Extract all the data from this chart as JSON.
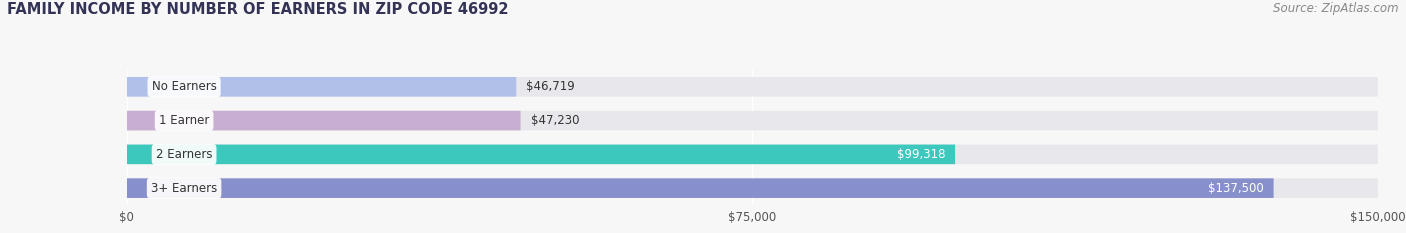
{
  "title": "FAMILY INCOME BY NUMBER OF EARNERS IN ZIP CODE 46992",
  "source": "Source: ZipAtlas.com",
  "categories": [
    "No Earners",
    "1 Earner",
    "2 Earners",
    "3+ Earners"
  ],
  "values": [
    46719,
    47230,
    99318,
    137500
  ],
  "bar_colors": [
    "#b0c0e8",
    "#c8aed0",
    "#3cc8bc",
    "#8890cc"
  ],
  "value_label_colors": [
    "#555555",
    "#555555",
    "#ffffff",
    "#ffffff"
  ],
  "value_labels": [
    "$46,719",
    "$47,230",
    "$99,318",
    "$137,500"
  ],
  "xlim_max": 150000,
  "xticks": [
    0,
    75000,
    150000
  ],
  "xticklabels": [
    "$0",
    "$75,000",
    "$150,000"
  ],
  "fig_bg_color": "#f7f7f7",
  "bar_bg_color": "#e8e8ec",
  "title_color": "#333355",
  "source_color": "#888888",
  "label_text_color": "#333333",
  "title_fontsize": 10.5,
  "source_fontsize": 8.5,
  "cat_fontsize": 8.5,
  "value_fontsize": 8.5,
  "xtick_fontsize": 8.5,
  "bar_height": 0.58,
  "fig_width": 14.06,
  "fig_height": 2.33
}
